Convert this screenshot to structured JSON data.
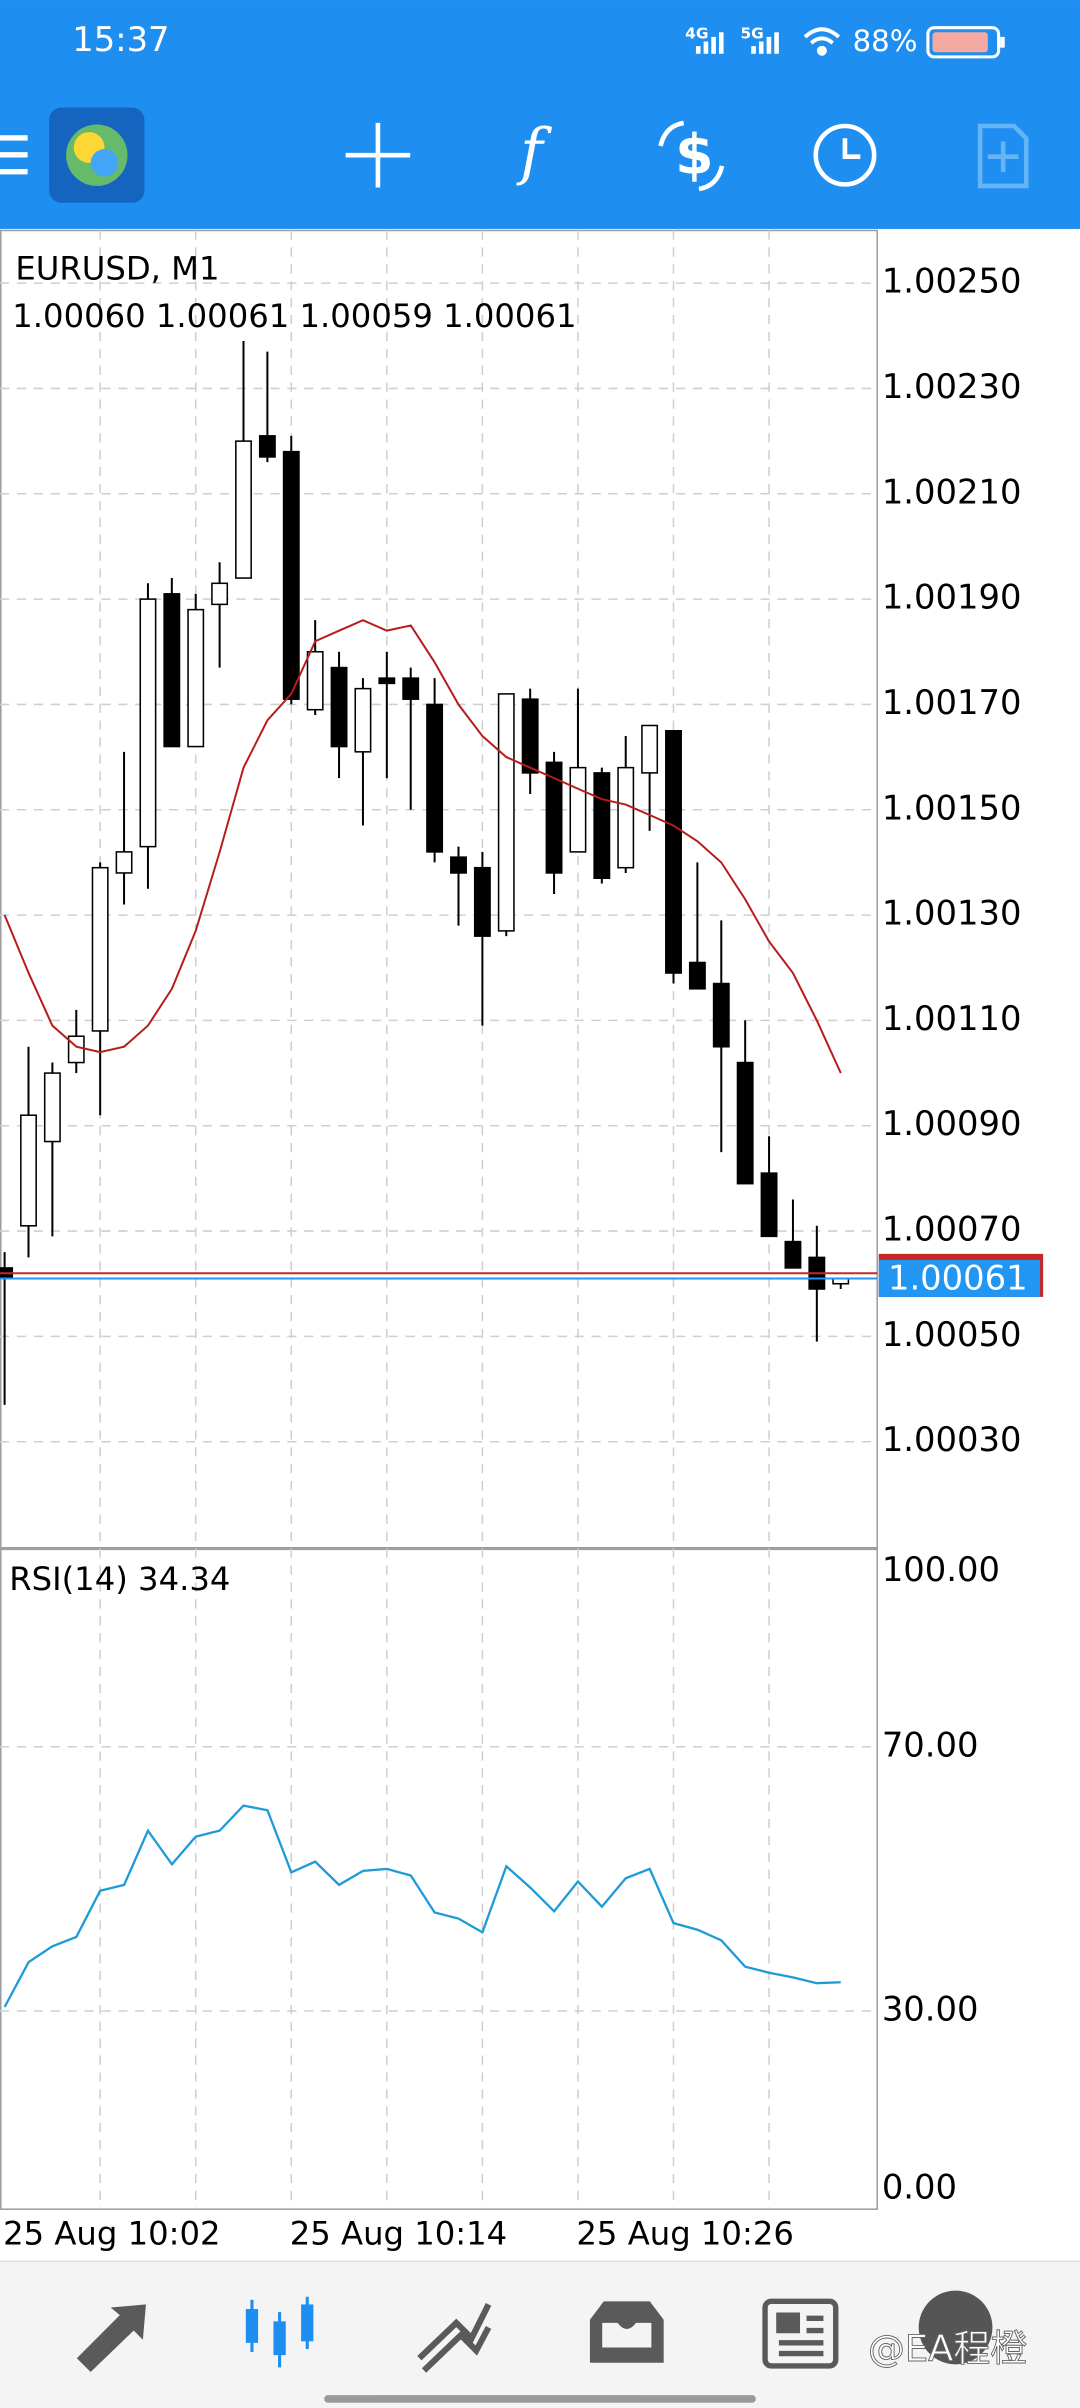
{
  "status_bar": {
    "time": "15:37",
    "signal_1": "4G",
    "signal_2": "5G",
    "battery": "88%"
  },
  "chart_data": [
    {
      "type": "candlestick",
      "title": "EURUSD, M1",
      "subtitle": "1.00060 1.00061 1.00059 1.00061",
      "categories": [
        "25 Aug 10:02",
        null,
        null,
        null,
        null,
        null,
        null,
        null,
        null,
        null,
        null,
        null,
        "25 Aug 10:14",
        null,
        null,
        null,
        null,
        null,
        null,
        null,
        null,
        null,
        null,
        null,
        "25 Aug 10:26",
        null,
        null,
        null,
        null,
        null,
        null,
        null,
        null,
        null,
        null,
        null
      ],
      "open": [
        1.00063,
        1.00071,
        1.00087,
        1.00102,
        1.00108,
        1.00138,
        1.00143,
        1.00191,
        1.00162,
        1.00189,
        1.00194,
        1.00221,
        1.00218,
        1.00169,
        1.00177,
        1.00161,
        1.00175,
        1.00175,
        1.0017,
        1.00141,
        1.00139,
        1.00127,
        1.00171,
        1.00159,
        1.00142,
        1.00157,
        1.00139,
        1.00157,
        1.00165,
        1.00121,
        1.00117,
        1.00102,
        1.00081,
        1.00068,
        1.00065,
        1.0006
      ],
      "high": [
        1.00066,
        1.00105,
        1.00102,
        1.00112,
        1.0014,
        1.00161,
        1.00193,
        1.00194,
        1.00191,
        1.00197,
        1.00239,
        1.00237,
        1.00221,
        1.00186,
        1.0018,
        1.00175,
        1.0018,
        1.00177,
        1.00175,
        1.00143,
        1.00142,
        1.00172,
        1.00173,
        1.00161,
        1.00173,
        1.00158,
        1.00164,
        1.00166,
        1.00165,
        1.0014,
        1.00129,
        1.0011,
        1.00088,
        1.00076,
        1.00071,
        1.00061
      ],
      "low": [
        1.00037,
        1.00065,
        1.00069,
        1.001,
        1.00092,
        1.00132,
        1.00135,
        1.00162,
        1.00162,
        1.00177,
        1.00194,
        1.00216,
        1.0017,
        1.00168,
        1.00156,
        1.00147,
        1.00156,
        1.0015,
        1.0014,
        1.00128,
        1.00109,
        1.00126,
        1.00153,
        1.00134,
        1.00142,
        1.00136,
        1.00138,
        1.00146,
        1.00117,
        1.00116,
        1.00085,
        1.00079,
        1.00069,
        1.00063,
        1.00049,
        1.00059
      ],
      "close": [
        1.00061,
        1.00092,
        1.001,
        1.00107,
        1.00139,
        1.00142,
        1.0019,
        1.00162,
        1.00188,
        1.00193,
        1.0022,
        1.00217,
        1.00171,
        1.0018,
        1.00162,
        1.00173,
        1.00174,
        1.00171,
        1.00142,
        1.00138,
        1.00126,
        1.00172,
        1.00157,
        1.00138,
        1.00158,
        1.00137,
        1.00158,
        1.00166,
        1.00119,
        1.00116,
        1.00105,
        1.00079,
        1.00069,
        1.00063,
        1.00059,
        1.00061
      ],
      "up_color": "#ffffff",
      "down_color": "#000000",
      "moving_average": {
        "color": "#b71c1c",
        "values": [
          1.0013,
          1.00119,
          1.00109,
          1.00105,
          1.00104,
          1.00105,
          1.00109,
          1.00116,
          1.00127,
          1.00142,
          1.00158,
          1.00167,
          1.00172,
          1.00182,
          1.00184,
          1.00186,
          1.00184,
          1.00185,
          1.00178,
          1.0017,
          1.00164,
          1.0016,
          1.00158,
          1.00156,
          1.00154,
          1.00152,
          1.00151,
          1.00149,
          1.00147,
          1.00144,
          1.0014,
          1.00133,
          1.00125,
          1.00119,
          1.0011,
          1.001
        ]
      },
      "bid": 1.00061,
      "bid_color": "#2196f3",
      "ask": 1.00062,
      "ask_color": "#c62828",
      "ylim": [
        1.0001,
        1.0026
      ],
      "yticks": [
        {
          "value": 1.0003,
          "label": "1.00030"
        },
        {
          "value": 1.0005,
          "label": "1.00050"
        },
        {
          "value": 1.0007,
          "label": "1.00070"
        },
        {
          "value": 1.0009,
          "label": "1.00090"
        },
        {
          "value": 1.0011,
          "label": "1.00110"
        },
        {
          "value": 1.0013,
          "label": "1.00130"
        },
        {
          "value": 1.0015,
          "label": "1.00150"
        },
        {
          "value": 1.0017,
          "label": "1.00170"
        },
        {
          "value": 1.0019,
          "label": "1.00190"
        },
        {
          "value": 1.0021,
          "label": "1.00210"
        },
        {
          "value": 1.0023,
          "label": "1.00230"
        },
        {
          "value": 1.0025,
          "label": "1.00250"
        }
      ],
      "grid": true
    },
    {
      "type": "line",
      "title": "RSI(14) 34.34",
      "color": "#1e9bd7",
      "values": [
        30.6,
        37.4,
        39.8,
        41.2,
        48.2,
        49.1,
        57.3,
        52.2,
        56.4,
        57.3,
        61.1,
        60.4,
        51.0,
        52.6,
        49.1,
        51.2,
        51.5,
        50.5,
        44.9,
        44.0,
        41.9,
        51.9,
        48.7,
        45.1,
        49.6,
        45.8,
        50.1,
        51.5,
        43.3,
        42.3,
        40.7,
        36.7,
        35.8,
        35.1,
        34.2,
        34.34
      ],
      "ylim": [
        0,
        100
      ],
      "yticks": [
        {
          "value": 0,
          "label": "0.00"
        },
        {
          "value": 30,
          "label": "30.00"
        },
        {
          "value": 70,
          "label": "70.00"
        },
        {
          "value": 100,
          "label": "100.00"
        }
      ],
      "grid": true
    }
  ],
  "watermark": "@EA程橙"
}
